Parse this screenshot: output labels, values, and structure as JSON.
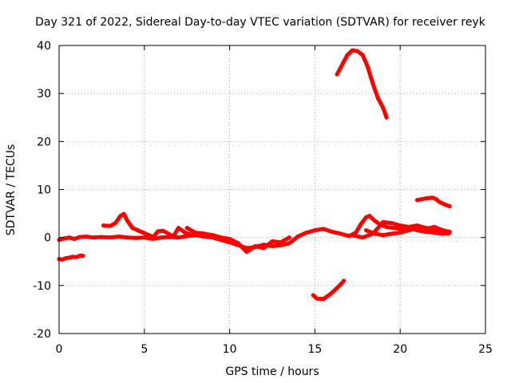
{
  "chart_data": {
    "type": "scatter",
    "title": "Day 321 of 2022, Sidereal Day-to-day VTEC variation (SDTVAR) for receiver reyk",
    "xlabel": "GPS time / hours",
    "ylabel": "SDTVAR / TECUs",
    "xlim": [
      0,
      25
    ],
    "ylim": [
      -20,
      40
    ],
    "xticks": [
      0,
      5,
      10,
      15,
      20,
      25
    ],
    "yticks": [
      -20,
      -10,
      0,
      10,
      20,
      30,
      40
    ],
    "xtick_labels": [
      "0",
      "5",
      "10",
      "15",
      "20",
      "25"
    ],
    "ytick_labels": [
      "-20",
      "-10",
      "0",
      "10",
      "20",
      "30",
      "40"
    ],
    "grid": true,
    "legend": "none",
    "series_color": "#ff0000",
    "series": [
      {
        "name": "track-main-1",
        "x": [
          0.0,
          0.3,
          0.6,
          0.9,
          1.2,
          1.6,
          2.0,
          2.5,
          3.0,
          3.5,
          4.0,
          4.5,
          5.0,
          5.5,
          6.0,
          6.5,
          7.0,
          7.5,
          8.0,
          8.5,
          9.0,
          9.5,
          10.0,
          10.5,
          11.0,
          11.5,
          12.0,
          12.5,
          13.0,
          13.5,
          14.0,
          14.5,
          15.0,
          15.5,
          16.0,
          16.5,
          17.0
        ],
        "y": [
          -0.5,
          -0.2,
          0.0,
          -0.3,
          0.1,
          0.2,
          0.0,
          0.1,
          0.0,
          0.2,
          0.0,
          -0.1,
          0.0,
          -0.3,
          0.0,
          0.1,
          0.0,
          0.3,
          0.5,
          0.2,
          0.0,
          -0.5,
          -1.0,
          -1.6,
          -2.2,
          -2.0,
          -1.5,
          -1.8,
          -1.6,
          -1.2,
          0.2,
          1.0,
          1.5,
          1.8,
          1.2,
          0.8,
          0.3
        ]
      },
      {
        "name": "track-low-start",
        "x": [
          0.0,
          0.2,
          0.4,
          0.6,
          0.8,
          1.0,
          1.2,
          1.4
        ],
        "y": [
          -4.5,
          -4.6,
          -4.3,
          -4.2,
          -4.0,
          -4.1,
          -3.8,
          -3.8
        ]
      },
      {
        "name": "track-hump-a",
        "x": [
          2.6,
          3.0,
          3.3,
          3.6,
          3.8,
          4.0,
          4.3,
          4.8,
          5.2,
          5.6
        ],
        "y": [
          2.5,
          2.4,
          3.0,
          4.5,
          4.9,
          3.5,
          2.0,
          1.2,
          0.6,
          0.0
        ]
      },
      {
        "name": "track-hump-b",
        "x": [
          5.5,
          5.8,
          6.1,
          6.4,
          6.7,
          7.0,
          7.4,
          7.8
        ],
        "y": [
          0.0,
          1.3,
          1.4,
          0.8,
          0.2,
          2.0,
          1.0,
          0.5
        ]
      },
      {
        "name": "track-mid",
        "x": [
          7.5,
          8.0,
          8.5,
          9.0,
          9.5,
          10.0,
          10.5,
          11.0,
          11.5,
          12.0,
          12.5,
          13.0,
          13.5
        ],
        "y": [
          2.0,
          1.0,
          0.8,
          0.5,
          0.0,
          -0.3,
          -1.2,
          -3.0,
          -1.8,
          -2.2,
          -0.8,
          -1.0,
          0.0
        ]
      },
      {
        "name": "track-peak",
        "x": [
          16.3,
          16.6,
          16.9,
          17.2,
          17.5,
          17.8,
          18.1,
          18.4,
          18.7,
          19.0,
          19.2
        ],
        "y": [
          34.0,
          36.0,
          38.0,
          39.0,
          38.8,
          38.0,
          35.5,
          32.0,
          29.0,
          27.0,
          25.0
        ]
      },
      {
        "name": "track-low-dip",
        "x": [
          14.9,
          15.1,
          15.3,
          15.5,
          15.7,
          15.9,
          16.1,
          16.3,
          16.5,
          16.7
        ],
        "y": [
          -12.0,
          -12.7,
          -12.8,
          -12.8,
          -12.3,
          -11.8,
          -11.2,
          -10.5,
          -9.8,
          -9.0
        ]
      },
      {
        "name": "track-late-1",
        "x": [
          17.0,
          17.4,
          17.7,
          18.0,
          18.2,
          18.5,
          18.8,
          19.2,
          19.6,
          20.0,
          20.5,
          21.0,
          21.5,
          22.0,
          22.5,
          22.9
        ],
        "y": [
          0.3,
          1.0,
          2.8,
          4.2,
          4.5,
          3.5,
          2.8,
          2.2,
          2.0,
          1.8,
          2.0,
          1.5,
          1.2,
          1.0,
          0.8,
          1.0
        ]
      },
      {
        "name": "track-late-2",
        "x": [
          17.2,
          17.8,
          18.4,
          19.0,
          19.5,
          20.0,
          20.5,
          21.0,
          21.5,
          22.0,
          22.5,
          22.9
        ],
        "y": [
          0.5,
          0.0,
          0.8,
          3.2,
          3.0,
          2.5,
          2.2,
          2.5,
          2.0,
          1.8,
          1.5,
          1.2
        ]
      },
      {
        "name": "track-late-3",
        "x": [
          18.0,
          18.5,
          19.0,
          19.5,
          20.0,
          20.5,
          21.0,
          21.5,
          22.0,
          22.5,
          22.8
        ],
        "y": [
          1.5,
          0.8,
          0.5,
          0.8,
          1.0,
          1.5,
          2.0,
          1.8,
          2.2,
          1.5,
          0.8
        ]
      },
      {
        "name": "track-upper-right",
        "x": [
          21.0,
          21.3,
          21.6,
          21.9,
          22.1,
          22.3,
          22.6,
          22.9
        ],
        "y": [
          7.8,
          8.0,
          8.2,
          8.3,
          8.0,
          7.4,
          6.9,
          6.5
        ]
      }
    ]
  }
}
